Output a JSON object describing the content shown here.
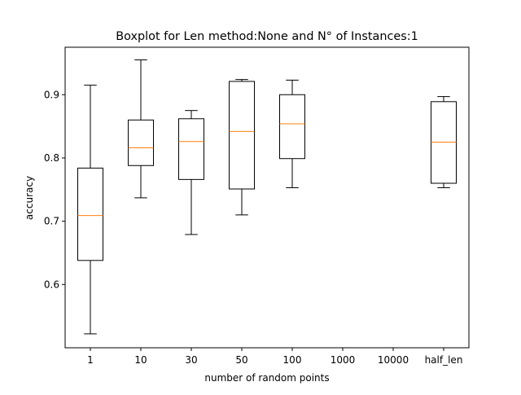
{
  "chart_data": {
    "type": "box",
    "title": "Boxplot for Len method:None and N° of Instances:1",
    "xlabel": "number of random points",
    "ylabel": "accuracy",
    "ylim": [
      0.5,
      0.975
    ],
    "yticks": [
      0.6,
      0.7,
      0.8,
      0.9
    ],
    "ytick_labels": [
      "0.6",
      "0.7",
      "0.8",
      "0.9"
    ],
    "grid": false,
    "categories": [
      "1",
      "10",
      "30",
      "50",
      "100",
      "1000",
      "10000",
      "half_len"
    ],
    "boxes": [
      {
        "category": "1",
        "whislo": 0.522,
        "q1": 0.638,
        "med": 0.709,
        "q3": 0.784,
        "whishi": 0.915
      },
      {
        "category": "10",
        "whislo": 0.737,
        "q1": 0.788,
        "med": 0.816,
        "q3": 0.86,
        "whishi": 0.955
      },
      {
        "category": "30",
        "whislo": 0.679,
        "q1": 0.766,
        "med": 0.826,
        "q3": 0.862,
        "whishi": 0.875
      },
      {
        "category": "50",
        "whislo": 0.71,
        "q1": 0.751,
        "med": 0.842,
        "q3": 0.921,
        "whishi": 0.924
      },
      {
        "category": "100",
        "whislo": 0.753,
        "q1": 0.799,
        "med": 0.854,
        "q3": 0.9,
        "whishi": 0.923
      },
      {
        "category": "1000",
        "whislo": null,
        "q1": null,
        "med": null,
        "q3": null,
        "whishi": null
      },
      {
        "category": "10000",
        "whislo": null,
        "q1": null,
        "med": null,
        "q3": null,
        "whishi": null
      },
      {
        "category": "half_len",
        "whislo": 0.753,
        "q1": 0.76,
        "med": 0.825,
        "q3": 0.889,
        "whishi": 0.897
      }
    ],
    "colors": {
      "box": "#000000",
      "median": "#ff7f0e",
      "whisker": "#000000"
    }
  }
}
